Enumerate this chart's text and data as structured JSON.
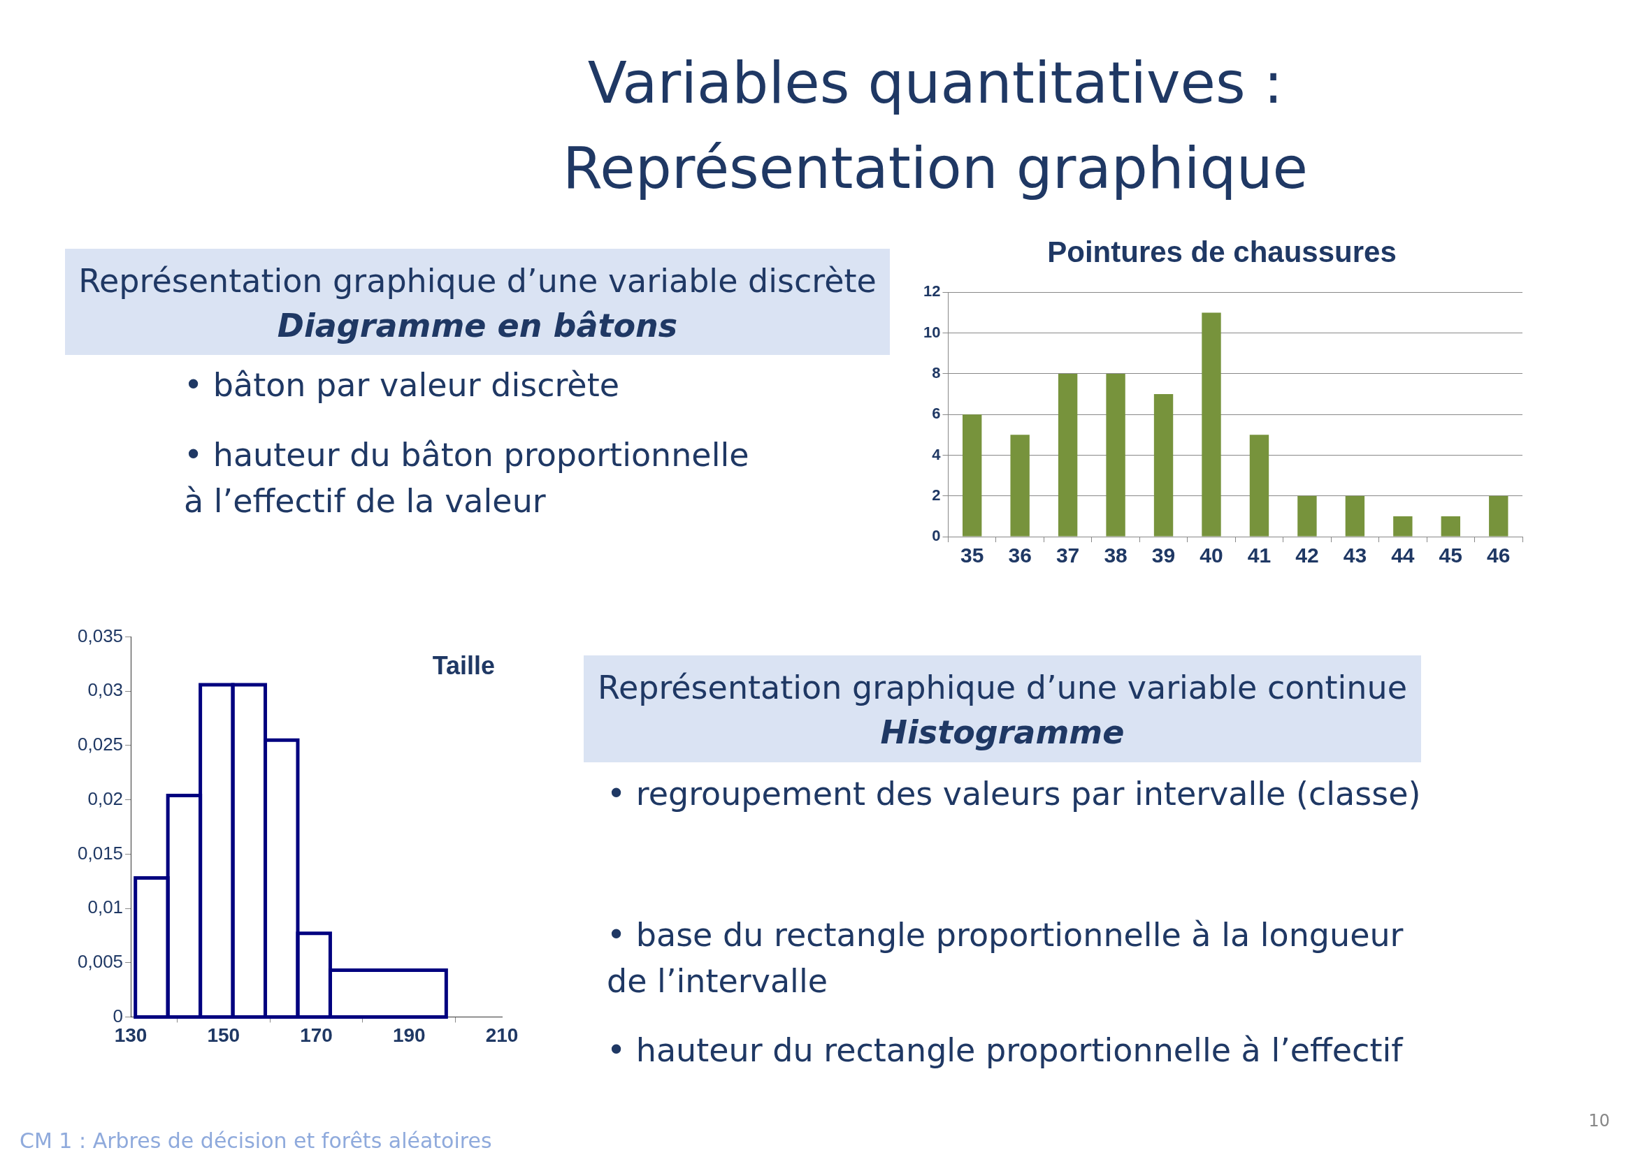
{
  "chart_data": [
    {
      "type": "other",
      "title": "Variables quantitatives :\nReprésentation graphique",
      "annotations": [
        "CM 1 : Arbres de décision et forêts aléatoires",
        "10"
      ]
    },
    {
      "type": "other",
      "title": "Représentation graphique d’une variable discrète",
      "subtitle": "Diagramme en bâtons",
      "annotations": [
        "• bâton par valeur discrète",
        "• hauteur du bâton proportionnelle\nà l’effectif de la valeur"
      ]
    },
    {
      "type": "bar",
      "title": "Pointures de chaussures",
      "categories": [
        "35",
        "36",
        "37",
        "38",
        "39",
        "40",
        "41",
        "42",
        "43",
        "44",
        "45",
        "46"
      ],
      "values": [
        6,
        5,
        8,
        8,
        7,
        11,
        5,
        2,
        2,
        1,
        1,
        2
      ],
      "color": "#77933c",
      "ylim": [
        0,
        12
      ],
      "yticks": [
        0,
        2,
        4,
        6,
        8,
        10,
        12
      ],
      "grid": "y",
      "legend": false
    },
    {
      "type": "histogram",
      "title": "Taille",
      "bins": [
        131,
        138,
        145,
        152,
        159,
        166,
        173,
        198
      ],
      "values": [
        0.0128,
        0.0204,
        0.0306,
        0.0306,
        0.0255,
        0.0077,
        0.0043
      ],
      "color": "#00007f",
      "xlim": [
        130,
        210
      ],
      "xticks": [
        130,
        150,
        170,
        190,
        210
      ],
      "ylim": [
        0,
        0.035
      ],
      "yticks": [
        0,
        {
          "value": 0.005,
          "label": "0,005"
        },
        {
          "value": 0.01,
          "label": "0,01"
        },
        {
          "value": 0.015,
          "label": "0,015"
        },
        {
          "value": 0.02,
          "label": "0,02"
        },
        {
          "value": 0.025,
          "label": "0,025"
        },
        {
          "value": 0.03,
          "label": "0,03"
        },
        {
          "value": 0.035,
          "label": "0,035"
        }
      ],
      "grid": false,
      "legend": false
    },
    {
      "type": "other",
      "title": "Représentation graphique d’une variable continue",
      "subtitle": "Histogramme",
      "annotations": [
        "• regroupement des valeurs par intervalle (classe)",
        "• base du rectangle proportionnelle à la longueur\nde l’intervalle",
        "• hauteur du rectangle proportionnelle à l’effectif"
      ]
    }
  ]
}
